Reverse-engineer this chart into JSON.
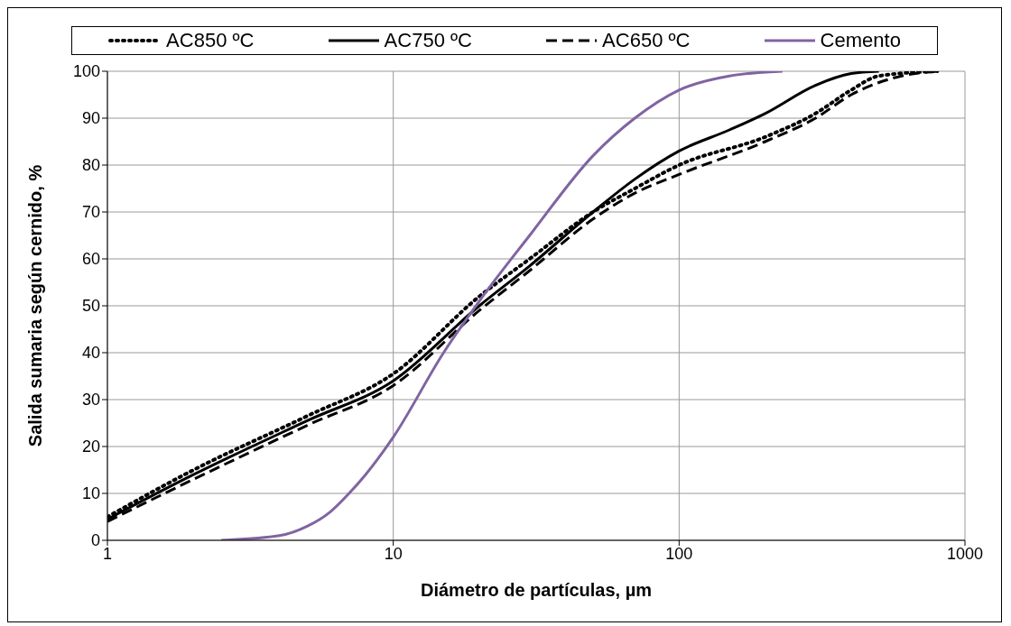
{
  "chart_data": {
    "type": "line",
    "xlabel": "Diámetro de partículas, µm",
    "ylabel": "Salida sumaria según cernido, %",
    "log": "x",
    "xlim": [
      1,
      1000
    ],
    "xticks": [
      1,
      10,
      100,
      1000
    ],
    "ylim": [
      0,
      100
    ],
    "yticks": [
      0,
      10,
      20,
      30,
      40,
      50,
      60,
      70,
      80,
      90,
      100
    ],
    "grid": true,
    "legend": "top",
    "marker": "none",
    "series": [
      {
        "name": "AC850 ºC",
        "color": "#000000",
        "line_style": "dotted",
        "x": [
          1,
          2,
          5,
          10,
          20,
          30,
          50,
          70,
          100,
          200,
          300,
          400,
          500,
          800
        ],
        "values": [
          5,
          15,
          26.5,
          35.5,
          52,
          60,
          70,
          75,
          80,
          86,
          91,
          96,
          99,
          100
        ]
      },
      {
        "name": "AC750 ºC",
        "color": "#000000",
        "line_style": "solid",
        "x": [
          1,
          2,
          5,
          10,
          20,
          30,
          50,
          70,
          100,
          150,
          200,
          300,
          400,
          500
        ],
        "values": [
          4.5,
          14,
          25.5,
          34,
          50,
          58.5,
          70,
          77,
          83,
          87.5,
          91,
          97,
          99.5,
          100
        ]
      },
      {
        "name": "AC650 ºC",
        "color": "#000000",
        "line_style": "dashed",
        "x": [
          1,
          2,
          5,
          10,
          20,
          30,
          50,
          70,
          100,
          200,
          300,
          400,
          600,
          800
        ],
        "values": [
          4,
          13,
          24.5,
          33,
          49,
          57.5,
          68.5,
          74,
          78,
          85,
          90,
          95,
          99,
          100
        ]
      },
      {
        "name": "Cemento",
        "color": "#8064a2",
        "line_style": "solid",
        "x": [
          2.5,
          4,
          5,
          6,
          7,
          8,
          10,
          15,
          20,
          30,
          50,
          70,
          100,
          150,
          230
        ],
        "values": [
          0,
          1,
          3,
          6,
          10,
          14,
          22,
          40,
          51,
          65,
          82,
          90,
          96,
          99,
          100
        ]
      }
    ]
  }
}
